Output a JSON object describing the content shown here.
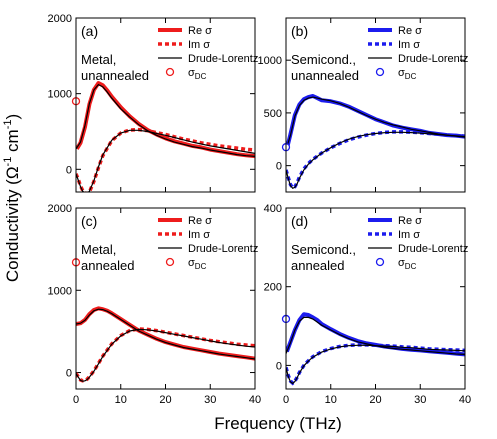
{
  "figure": {
    "ylabel_main": "Conductivity (Ω",
    "ylabel_sup1": "-1",
    "ylabel_mid": " cm",
    "ylabel_sup2": "-1",
    "ylabel_end": ")",
    "xlabel": "Frequency (THz)"
  },
  "colors": {
    "red": "#ee1c1c",
    "blue": "#1c1cee",
    "black": "#000000"
  },
  "chart_data": [
    {
      "type": "line",
      "panel_label": "(a)",
      "annotation_line1": "Metal,",
      "annotation_line2": "unannealed",
      "color": "#ee1c1c",
      "xlim": [
        0,
        40
      ],
      "ylim": [
        -300,
        2000
      ],
      "xticks": [
        0,
        10,
        20,
        30,
        40
      ],
      "yticks": [
        0,
        1000,
        2000
      ],
      "ytick_labels": [
        "0",
        "1000",
        "2000"
      ],
      "show_xtick_labels": false,
      "legend": {
        "re": "Re σ",
        "im": "Im σ",
        "fit": "Drude-Lorentz",
        "dc": "σ",
        "dc_sub": "DC"
      },
      "sigma_dc": {
        "x": 0,
        "y": 900
      },
      "series": [
        {
          "name": "Re σ",
          "style": "solid",
          "x": [
            0.2,
            1,
            2,
            3,
            4,
            5,
            6,
            7,
            8,
            10,
            12,
            14,
            16,
            18,
            20,
            22,
            24,
            26,
            28,
            30,
            32,
            34,
            36,
            38,
            40
          ],
          "values": [
            270,
            350,
            560,
            860,
            1050,
            1140,
            1110,
            1040,
            960,
            820,
            700,
            600,
            520,
            460,
            410,
            370,
            340,
            310,
            290,
            260,
            240,
            220,
            200,
            185,
            175
          ]
        },
        {
          "name": "Im σ",
          "style": "dotted",
          "x": [
            0,
            0.5,
            1,
            1.5,
            2,
            2.5,
            3,
            4,
            5,
            6,
            8,
            10,
            12,
            14,
            16,
            18,
            20,
            22,
            24,
            26,
            28,
            30,
            32,
            34,
            36,
            38,
            40
          ],
          "values": [
            -60,
            -130,
            -220,
            -280,
            -310,
            -320,
            -300,
            -160,
            20,
            180,
            380,
            480,
            520,
            525,
            510,
            485,
            460,
            430,
            400,
            375,
            350,
            330,
            310,
            295,
            280,
            265,
            255
          ]
        },
        {
          "name": "Drude-Lorentz",
          "style": "fit",
          "x": [
            0,
            1,
            2,
            3,
            4,
            5,
            6,
            7,
            8,
            10,
            12,
            14,
            16,
            18,
            20,
            22,
            24,
            26,
            28,
            30,
            32,
            34,
            36,
            38,
            40
          ],
          "values": [
            270,
            360,
            580,
            870,
            1050,
            1120,
            1090,
            1020,
            940,
            800,
            690,
            590,
            510,
            450,
            400,
            360,
            330,
            300,
            280,
            255,
            235,
            215,
            195,
            180,
            170
          ]
        },
        {
          "name": "Drude-Lorentz",
          "style": "fit",
          "x": [
            0,
            0.5,
            1,
            1.5,
            2,
            2.5,
            3,
            4,
            5,
            6,
            8,
            10,
            12,
            14,
            16,
            18,
            20,
            22,
            24,
            26,
            28,
            30,
            32,
            34,
            36,
            38,
            40
          ],
          "values": [
            -60,
            -140,
            -230,
            -290,
            -315,
            -320,
            -290,
            -150,
            30,
            190,
            385,
            480,
            515,
            515,
            500,
            475,
            450,
            420,
            390,
            360,
            335,
            310,
            290,
            270,
            250,
            230,
            210
          ]
        }
      ]
    },
    {
      "type": "line",
      "panel_label": "(b)",
      "annotation_line1": "Semicond.,",
      "annotation_line2": "unannealed",
      "color": "#1c1cee",
      "xlim": [
        0,
        40
      ],
      "ylim": [
        -250,
        1400
      ],
      "xticks": [
        0,
        10,
        20,
        30,
        40
      ],
      "yticks": [
        0,
        500,
        1000
      ],
      "ytick_labels": [
        "0",
        "500",
        "1000"
      ],
      "show_xtick_labels": false,
      "legend": {
        "re": "Re σ",
        "im": "Im σ",
        "fit": "Drude-Lorentz",
        "dc": "σ",
        "dc_sub": "DC"
      },
      "sigma_dc": {
        "x": 0,
        "y": 175
      },
      "series": [
        {
          "name": "Re σ",
          "style": "solid",
          "x": [
            0.2,
            1,
            2,
            3,
            4,
            5,
            6,
            7,
            8,
            10,
            12,
            14,
            16,
            18,
            20,
            22,
            24,
            26,
            28,
            30,
            32,
            34,
            36,
            38,
            40
          ],
          "values": [
            160,
            300,
            480,
            580,
            630,
            650,
            660,
            640,
            620,
            610,
            590,
            560,
            520,
            480,
            440,
            410,
            380,
            360,
            345,
            330,
            310,
            300,
            290,
            285,
            275
          ]
        },
        {
          "name": "Im σ",
          "style": "dotted",
          "x": [
            0,
            0.5,
            1,
            1.5,
            2,
            2.5,
            3,
            4,
            5,
            6,
            8,
            10,
            12,
            14,
            16,
            18,
            20,
            22,
            24,
            26,
            28,
            30,
            32,
            34,
            36,
            38,
            40
          ],
          "values": [
            -40,
            -110,
            -180,
            -210,
            -200,
            -160,
            -110,
            -30,
            20,
            60,
            120,
            170,
            210,
            245,
            270,
            290,
            305,
            315,
            320,
            320,
            318,
            312,
            305,
            298,
            290,
            285,
            280
          ]
        },
        {
          "name": "Drude-Lorentz",
          "style": "fit",
          "x": [
            0,
            1,
            2,
            3,
            4,
            5,
            6,
            7,
            8,
            10,
            12,
            14,
            16,
            18,
            20,
            22,
            24,
            26,
            28,
            30,
            32,
            34,
            36,
            38,
            40
          ],
          "values": [
            150,
            290,
            470,
            570,
            620,
            640,
            650,
            640,
            630,
            615,
            590,
            555,
            515,
            475,
            440,
            410,
            385,
            365,
            345,
            330,
            315,
            300,
            290,
            280,
            270
          ]
        },
        {
          "name": "Drude-Lorentz",
          "style": "fit",
          "x": [
            0,
            0.5,
            1,
            1.5,
            2,
            2.5,
            3,
            4,
            5,
            6,
            8,
            10,
            12,
            14,
            16,
            18,
            20,
            22,
            24,
            26,
            28,
            30,
            32,
            34,
            36,
            38,
            40
          ],
          "values": [
            -40,
            -120,
            -190,
            -215,
            -205,
            -170,
            -120,
            -40,
            15,
            55,
            120,
            170,
            215,
            250,
            275,
            293,
            305,
            312,
            316,
            316,
            313,
            308,
            302,
            295,
            288,
            282,
            275
          ]
        }
      ]
    },
    {
      "type": "line",
      "panel_label": "(c)",
      "annotation_line1": "Metal,",
      "annotation_line2": "annealed",
      "color": "#ee1c1c",
      "xlim": [
        0,
        40
      ],
      "ylim": [
        -200,
        2000
      ],
      "xticks": [
        0,
        10,
        20,
        30,
        40
      ],
      "yticks": [
        0,
        1000,
        2000
      ],
      "ytick_labels": [
        "0",
        "1000",
        "2000"
      ],
      "show_xtick_labels": false,
      "legend": {
        "re": "Re σ",
        "im": "Im σ",
        "fit": "Drude-Lorentz",
        "dc": "σ",
        "dc_sub": "DC"
      },
      "sigma_dc": {
        "x": 0,
        "y": 1340
      },
      "series": [
        {
          "name": "Re σ",
          "style": "solid",
          "x": [
            0,
            1,
            2,
            3,
            4,
            5,
            6,
            7,
            8,
            10,
            12,
            14,
            16,
            18,
            20,
            22,
            24,
            26,
            28,
            30,
            32,
            34,
            36,
            38,
            40
          ],
          "values": [
            590,
            600,
            640,
            710,
            760,
            780,
            770,
            750,
            720,
            650,
            580,
            510,
            460,
            410,
            370,
            340,
            310,
            290,
            270,
            250,
            230,
            215,
            200,
            185,
            170
          ]
        },
        {
          "name": "Im σ",
          "style": "dotted",
          "x": [
            0,
            0.5,
            1,
            1.5,
            2,
            2.5,
            3,
            4,
            5,
            6,
            8,
            10,
            12,
            14,
            16,
            18,
            20,
            22,
            24,
            26,
            28,
            30,
            32,
            34,
            36,
            38,
            40
          ],
          "values": [
            -10,
            -50,
            -90,
            -100,
            -95,
            -80,
            -50,
            20,
            110,
            200,
            350,
            450,
            510,
            530,
            525,
            510,
            490,
            470,
            450,
            430,
            410,
            390,
            375,
            360,
            345,
            335,
            325
          ]
        },
        {
          "name": "Drude-Lorentz",
          "style": "fit",
          "x": [
            0,
            1,
            2,
            3,
            4,
            5,
            6,
            7,
            8,
            10,
            12,
            14,
            16,
            18,
            20,
            22,
            24,
            26,
            28,
            30,
            32,
            34,
            36,
            38,
            40
          ],
          "values": [
            590,
            600,
            635,
            700,
            750,
            770,
            765,
            745,
            715,
            645,
            575,
            505,
            455,
            405,
            365,
            335,
            305,
            285,
            265,
            245,
            225,
            210,
            195,
            180,
            165
          ]
        },
        {
          "name": "Drude-Lorentz",
          "style": "fit",
          "x": [
            0,
            0.5,
            1,
            1.5,
            2,
            2.5,
            3,
            4,
            5,
            6,
            8,
            10,
            12,
            14,
            16,
            18,
            20,
            22,
            24,
            26,
            28,
            30,
            32,
            34,
            36,
            38,
            40
          ],
          "values": [
            -10,
            -55,
            -95,
            -105,
            -100,
            -85,
            -55,
            15,
            105,
            195,
            345,
            445,
            505,
            525,
            520,
            505,
            485,
            465,
            445,
            425,
            405,
            385,
            365,
            350,
            335,
            320,
            310
          ]
        }
      ]
    },
    {
      "type": "line",
      "panel_label": "(d)",
      "annotation_line1": "Semicond.,",
      "annotation_line2": "annealed",
      "color": "#1c1cee",
      "xlim": [
        0,
        40
      ],
      "ylim": [
        -60,
        400
      ],
      "xticks": [
        0,
        10,
        20,
        30,
        40
      ],
      "yticks": [
        0,
        200,
        400
      ],
      "ytick_labels": [
        "0",
        "200",
        "400"
      ],
      "show_xtick_labels": true,
      "legend": {
        "re": "Re σ",
        "im": "Im σ",
        "fit": "Drude-Lorentz",
        "dc": "σ",
        "dc_sub": "DC"
      },
      "sigma_dc": {
        "x": 0,
        "y": 118
      },
      "series": [
        {
          "name": "Re σ",
          "style": "solid",
          "x": [
            0.2,
            1,
            2,
            3,
            4,
            5,
            6,
            7,
            8,
            10,
            12,
            14,
            16,
            18,
            20,
            22,
            24,
            26,
            28,
            30,
            32,
            34,
            36,
            38,
            40
          ],
          "values": [
            35,
            60,
            90,
            115,
            130,
            128,
            122,
            115,
            105,
            92,
            80,
            70,
            62,
            56,
            52,
            48,
            45,
            42,
            40,
            38,
            36,
            34,
            32,
            30,
            28
          ]
        },
        {
          "name": "Im σ",
          "style": "dotted",
          "x": [
            0,
            0.5,
            1,
            1.5,
            2,
            2.5,
            3,
            4,
            5,
            6,
            8,
            10,
            12,
            14,
            16,
            18,
            20,
            22,
            24,
            26,
            28,
            30,
            32,
            34,
            36,
            38,
            40
          ],
          "values": [
            -5,
            -25,
            -40,
            -45,
            -40,
            -30,
            -18,
            0,
            12,
            22,
            35,
            43,
            48,
            51,
            52,
            52,
            51,
            50,
            49,
            47,
            46,
            44,
            42,
            41,
            40,
            39,
            38
          ]
        },
        {
          "name": "Drude-Lorentz",
          "style": "fit",
          "x": [
            0,
            1,
            2,
            3,
            4,
            5,
            6,
            7,
            8,
            10,
            12,
            14,
            16,
            18,
            20,
            22,
            24,
            26,
            28,
            30,
            32,
            34,
            36,
            38,
            40
          ],
          "values": [
            30,
            58,
            90,
            112,
            122,
            122,
            118,
            110,
            102,
            90,
            78,
            68,
            60,
            55,
            50,
            46,
            43,
            41,
            39,
            37,
            35,
            33,
            31,
            29,
            28
          ]
        },
        {
          "name": "Drude-Lorentz",
          "style": "fit",
          "x": [
            0,
            0.5,
            1,
            1.5,
            2,
            2.5,
            3,
            4,
            5,
            6,
            8,
            10,
            12,
            14,
            16,
            18,
            20,
            22,
            24,
            26,
            28,
            30,
            32,
            34,
            36,
            38,
            40
          ],
          "values": [
            -5,
            -28,
            -42,
            -46,
            -41,
            -31,
            -19,
            -1,
            11,
            21,
            34,
            42,
            47,
            50,
            51,
            51,
            50,
            49,
            48,
            46,
            45,
            43,
            41,
            40,
            39,
            38,
            37
          ]
        }
      ]
    }
  ]
}
